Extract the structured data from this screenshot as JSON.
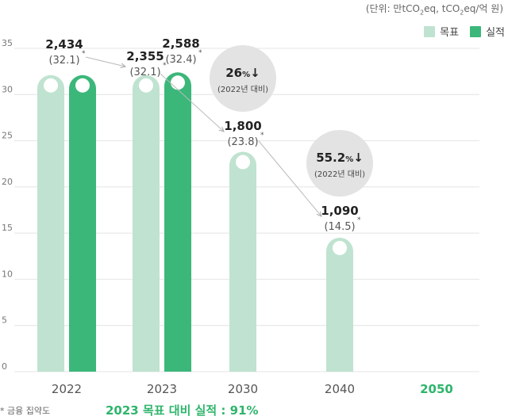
{
  "unit_note": {
    "prefix": "(단위: 만tCO",
    "sub1": "2",
    "mid": "eq, tCO",
    "sub2": "2",
    "suffix": "eq/억 원)"
  },
  "legend": {
    "target": "목표",
    "actual": "실적"
  },
  "footnote": "* 금융 집약도",
  "summary": "2023 목표 대비 실적 : 91%",
  "colors": {
    "target": "#bfe3d0",
    "actual": "#3bb77a",
    "highlight_year": "#2fb56c",
    "grid": "#e4e4e4",
    "badge": "#e3e3e3"
  },
  "chart_data": {
    "type": "bar",
    "categories": [
      "2022",
      "2023",
      "2030",
      "2040",
      "2050"
    ],
    "ylim": [
      0,
      35
    ],
    "yticks": [
      0,
      5,
      10,
      15,
      20,
      25,
      30,
      35
    ],
    "series": [
      {
        "name": "목표",
        "values": [
          32.1,
          32.1,
          23.8,
          14.5,
          null
        ]
      },
      {
        "name": "실적",
        "values": [
          32.1,
          32.4,
          null,
          null,
          null
        ]
      }
    ],
    "labels": [
      {
        "category": "2022",
        "series": "목표",
        "value": "2,434",
        "intensity": "(32.1)",
        "mark": "*"
      },
      {
        "category": "2023",
        "series": "목표",
        "value": "2,355",
        "intensity": "(32.1)",
        "mark": "*"
      },
      {
        "category": "2023",
        "series": "실적",
        "value": "2,588",
        "intensity": "(32.4)",
        "mark": "*"
      },
      {
        "category": "2030",
        "series": "목표",
        "value": "1,800",
        "intensity": "(23.8)",
        "mark": "*"
      },
      {
        "category": "2040",
        "series": "목표",
        "value": "1,090",
        "intensity": "(14.5)",
        "mark": "*"
      }
    ],
    "annotations": [
      {
        "value": "26",
        "unit": "%",
        "arrow": "↓",
        "note": "(2022년 대비)"
      },
      {
        "value": "55.2",
        "unit": "%",
        "arrow": "↓",
        "note": "(2022년 대비)"
      }
    ]
  }
}
